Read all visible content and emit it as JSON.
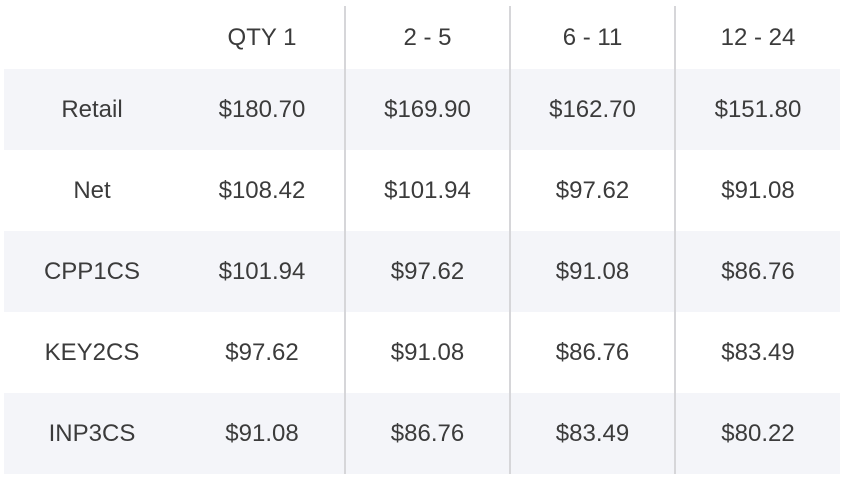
{
  "pricing_table": {
    "header": {
      "corner": "",
      "tiers": [
        "QTY 1",
        "2 - 5",
        "6 - 11",
        "12 - 24"
      ]
    },
    "rows": [
      {
        "label": "Retail",
        "prices": [
          "$180.70",
          "$169.90",
          "$162.70",
          "$151.80"
        ]
      },
      {
        "label": "Net",
        "prices": [
          "$108.42",
          "$101.94",
          "$97.62",
          "$91.08"
        ]
      },
      {
        "label": "CPP1CS",
        "prices": [
          "$101.94",
          "$97.62",
          "$91.08",
          "$86.76"
        ]
      },
      {
        "label": "KEY2CS",
        "prices": [
          "$97.62",
          "$91.08",
          "$86.76",
          "$83.49"
        ]
      },
      {
        "label": "INP3CS",
        "prices": [
          "$91.08",
          "$86.76",
          "$83.49",
          "$80.22"
        ]
      }
    ]
  }
}
